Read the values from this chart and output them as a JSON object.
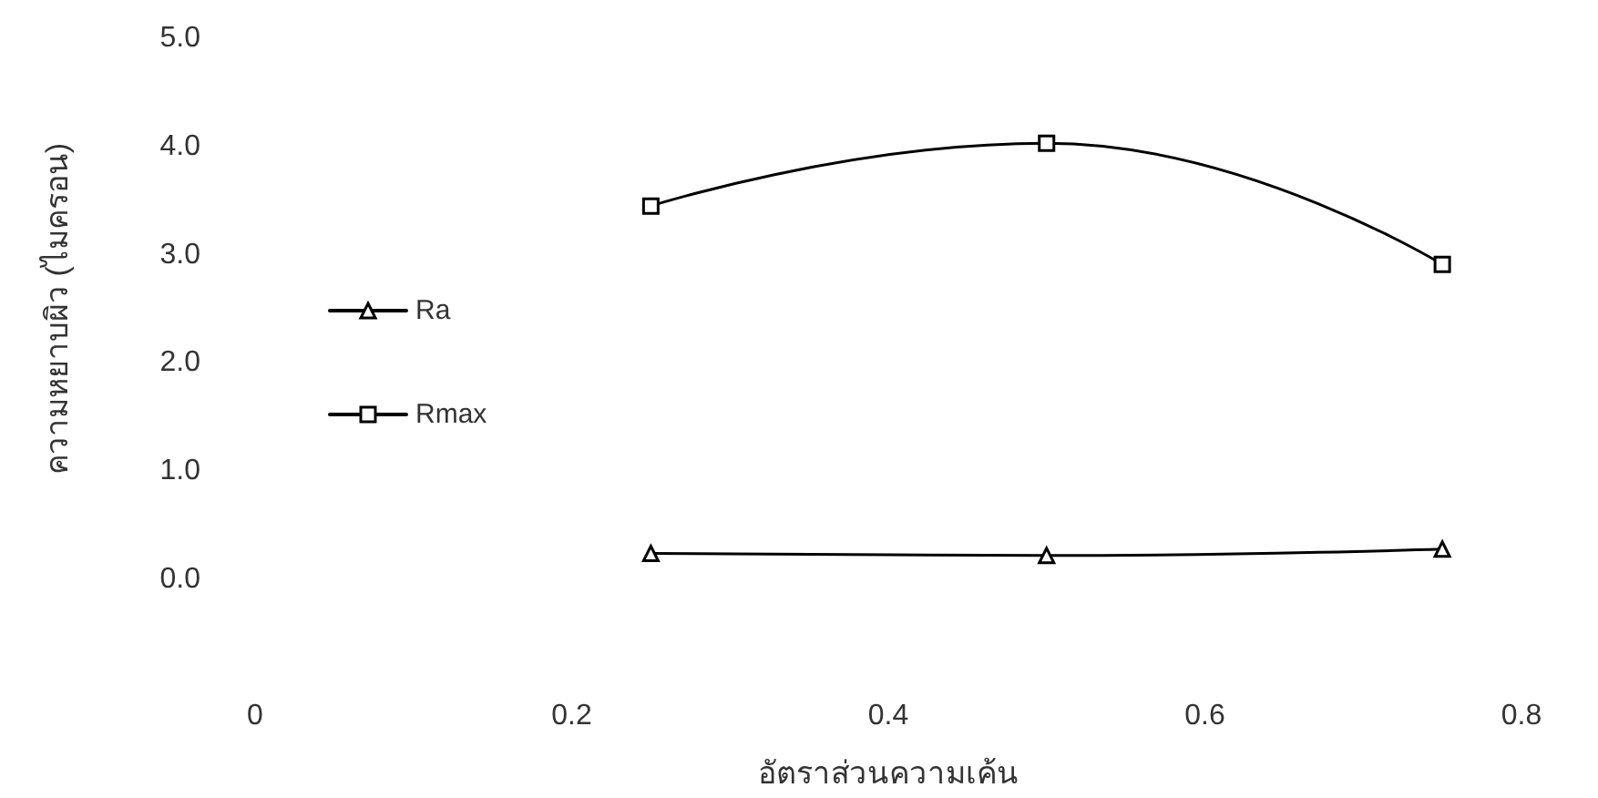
{
  "chart_data": {
    "type": "line",
    "xlabel": "อัตราส่วนความเค้น",
    "ylabel": "ความหยาบผิว (ไมครอน)",
    "x": [
      0.25,
      0.5,
      0.75
    ],
    "series": [
      {
        "name": "Ra",
        "color": "#000000",
        "marker": "triangle",
        "values": [
          0.24,
          0.22,
          0.28
        ]
      },
      {
        "name": "Rmax",
        "color": "#000000",
        "marker": "square",
        "values": [
          3.45,
          4.03,
          2.91
        ]
      }
    ],
    "xlim": [
      0,
      0.8
    ],
    "xticks": [
      0,
      0.2,
      0.4,
      0.6,
      0.8
    ],
    "ylim": [
      0,
      5
    ],
    "yticks": [
      {
        "value": 0,
        "label": "0.0"
      },
      {
        "value": 1,
        "label": "1.0"
      },
      {
        "value": 2,
        "label": "2.0"
      },
      {
        "value": 3,
        "label": "3.0"
      },
      {
        "value": 4,
        "label": "4.0"
      },
      {
        "value": 5,
        "label": "5.0"
      }
    ],
    "grid": false,
    "legend": "left",
    "line_style": "solid"
  }
}
